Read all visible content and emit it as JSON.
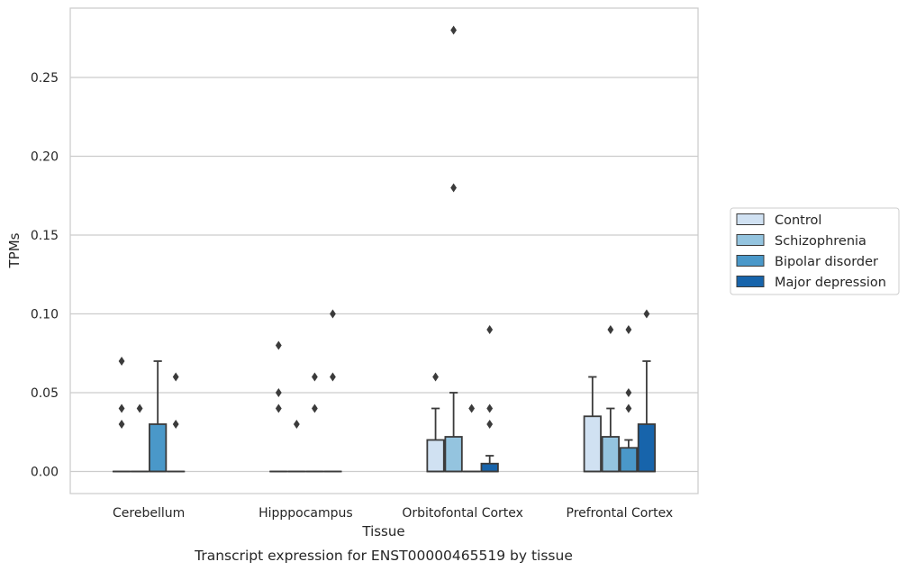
{
  "chart_data": {
    "type": "box",
    "xlabel": "Tissue",
    "ylabel": "TPMs",
    "caption": "Transcript expression for ENST00000465519 by tissue",
    "categories": [
      "Cerebellum",
      "Hipppocampus",
      "Orbitofontal Cortex",
      "Prefrontal Cortex"
    ],
    "yticks": [
      "0.00",
      "0.05",
      "0.10",
      "0.15",
      "0.20",
      "0.25"
    ],
    "ylim": [
      -0.014,
      0.294
    ],
    "grid": true,
    "legend_position": "right",
    "series": [
      {
        "name": "Control",
        "color": "#d0e1f2",
        "boxes": [
          {
            "q1": 0.0,
            "median": 0.0,
            "q3": 0.0,
            "whisker_low": 0.0,
            "whisker_high": 0.0,
            "outliers": [
              0.07,
              0.04,
              0.03
            ]
          },
          {
            "q1": 0.0,
            "median": 0.0,
            "q3": 0.0,
            "whisker_low": 0.0,
            "whisker_high": 0.0,
            "outliers": [
              0.08,
              0.05,
              0.04
            ]
          },
          {
            "q1": 0.0,
            "median": 0.0,
            "q3": 0.02,
            "whisker_low": 0.0,
            "whisker_high": 0.04,
            "outliers": [
              0.06
            ]
          },
          {
            "q1": 0.0,
            "median": 0.0,
            "q3": 0.035,
            "whisker_low": 0.0,
            "whisker_high": 0.06,
            "outliers": []
          }
        ]
      },
      {
        "name": "Schizophrenia",
        "color": "#94c4df",
        "boxes": [
          {
            "q1": 0.0,
            "median": 0.0,
            "q3": 0.0,
            "whisker_low": 0.0,
            "whisker_high": 0.0,
            "outliers": [
              0.04
            ]
          },
          {
            "q1": 0.0,
            "median": 0.0,
            "q3": 0.0,
            "whisker_low": 0.0,
            "whisker_high": 0.0,
            "outliers": [
              0.03
            ]
          },
          {
            "q1": 0.0,
            "median": 0.0,
            "q3": 0.022,
            "whisker_low": 0.0,
            "whisker_high": 0.05,
            "outliers": [
              0.18,
              0.28
            ]
          },
          {
            "q1": 0.0,
            "median": 0.0,
            "q3": 0.022,
            "whisker_low": 0.0,
            "whisker_high": 0.04,
            "outliers": [
              0.09
            ]
          }
        ]
      },
      {
        "name": "Bipolar disorder",
        "color": "#4a98c9",
        "boxes": [
          {
            "q1": 0.0,
            "median": 0.0,
            "q3": 0.03,
            "whisker_low": 0.0,
            "whisker_high": 0.07,
            "outliers": []
          },
          {
            "q1": 0.0,
            "median": 0.0,
            "q3": 0.0,
            "whisker_low": 0.0,
            "whisker_high": 0.0,
            "outliers": [
              0.06,
              0.04
            ]
          },
          {
            "q1": 0.0,
            "median": 0.0,
            "q3": 0.0,
            "whisker_low": 0.0,
            "whisker_high": 0.0,
            "outliers": [
              0.04
            ]
          },
          {
            "q1": 0.0,
            "median": 0.0,
            "q3": 0.015,
            "whisker_low": 0.0,
            "whisker_high": 0.02,
            "outliers": [
              0.09,
              0.05,
              0.04
            ]
          }
        ]
      },
      {
        "name": "Major depression",
        "color": "#1764ab",
        "boxes": [
          {
            "q1": 0.0,
            "median": 0.0,
            "q3": 0.0,
            "whisker_low": 0.0,
            "whisker_high": 0.0,
            "outliers": [
              0.06,
              0.03
            ]
          },
          {
            "q1": 0.0,
            "median": 0.0,
            "q3": 0.0,
            "whisker_low": 0.0,
            "whisker_high": 0.0,
            "outliers": [
              0.1,
              0.06
            ]
          },
          {
            "q1": 0.0,
            "median": 0.0,
            "q3": 0.005,
            "whisker_low": 0.0,
            "whisker_high": 0.01,
            "outliers": [
              0.09,
              0.04,
              0.03
            ]
          },
          {
            "q1": 0.0,
            "median": 0.0,
            "q3": 0.03,
            "whisker_low": 0.0,
            "whisker_high": 0.07,
            "outliers": [
              0.1
            ]
          }
        ]
      }
    ]
  }
}
